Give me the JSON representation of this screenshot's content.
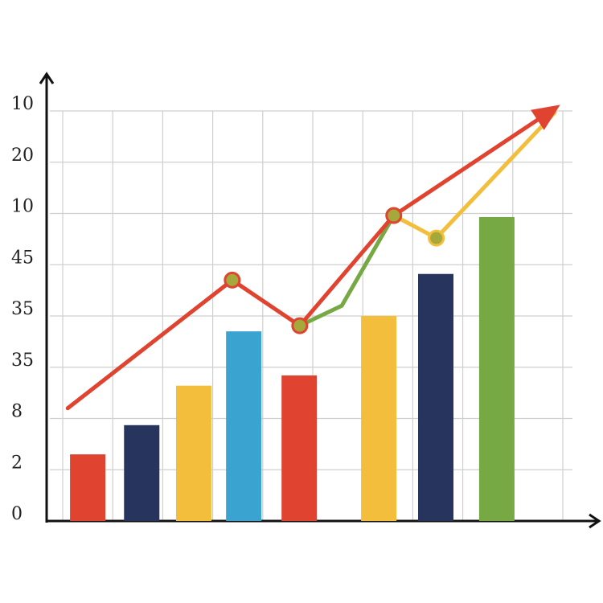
{
  "chart_data": {
    "type": "bar",
    "xlim": [
      0,
      10
    ],
    "ylim": [
      0,
      8
    ],
    "yticks": [
      {
        "value": 0,
        "label": "0"
      },
      {
        "value": 1,
        "label": "2"
      },
      {
        "value": 2,
        "label": "8"
      },
      {
        "value": 3,
        "label": "35"
      },
      {
        "value": 4,
        "label": "35"
      },
      {
        "value": 5,
        "label": "45"
      },
      {
        "value": 6,
        "label": "10"
      },
      {
        "value": 7,
        "label": "20"
      },
      {
        "value": 8,
        "label": "10"
      }
    ],
    "grid": true,
    "bars": {
      "x": [
        0.5,
        1.58,
        2.62,
        3.62,
        4.73,
        6.32,
        7.46,
        8.68
      ],
      "values": [
        1.3,
        1.87,
        2.64,
        3.7,
        2.84,
        4.0,
        4.82,
        5.93
      ],
      "colors": [
        "#e0432f",
        "#27355e",
        "#f2be3c",
        "#3aa3cf",
        "#e0432f",
        "#f2be3c",
        "#27355e",
        "#76a843"
      ]
    },
    "lines": [
      {
        "color": "#76a843",
        "x": [
          4.74,
          5.58,
          6.62
        ],
        "values": [
          3.81,
          4.2,
          5.96
        ],
        "marker": false,
        "arrow": false
      },
      {
        "color": "#f2be3c",
        "x": [
          6.62,
          7.47,
          9.84
        ],
        "values": [
          5.96,
          5.52,
          7.97
        ],
        "marker": true,
        "arrow": false
      },
      {
        "color": "#e0432f",
        "x": [
          0.1,
          3.39,
          4.74,
          6.62,
          9.84
        ],
        "values": [
          2.2,
          4.7,
          3.81,
          5.96,
          8.05
        ],
        "marker": true,
        "arrow": true
      }
    ]
  }
}
